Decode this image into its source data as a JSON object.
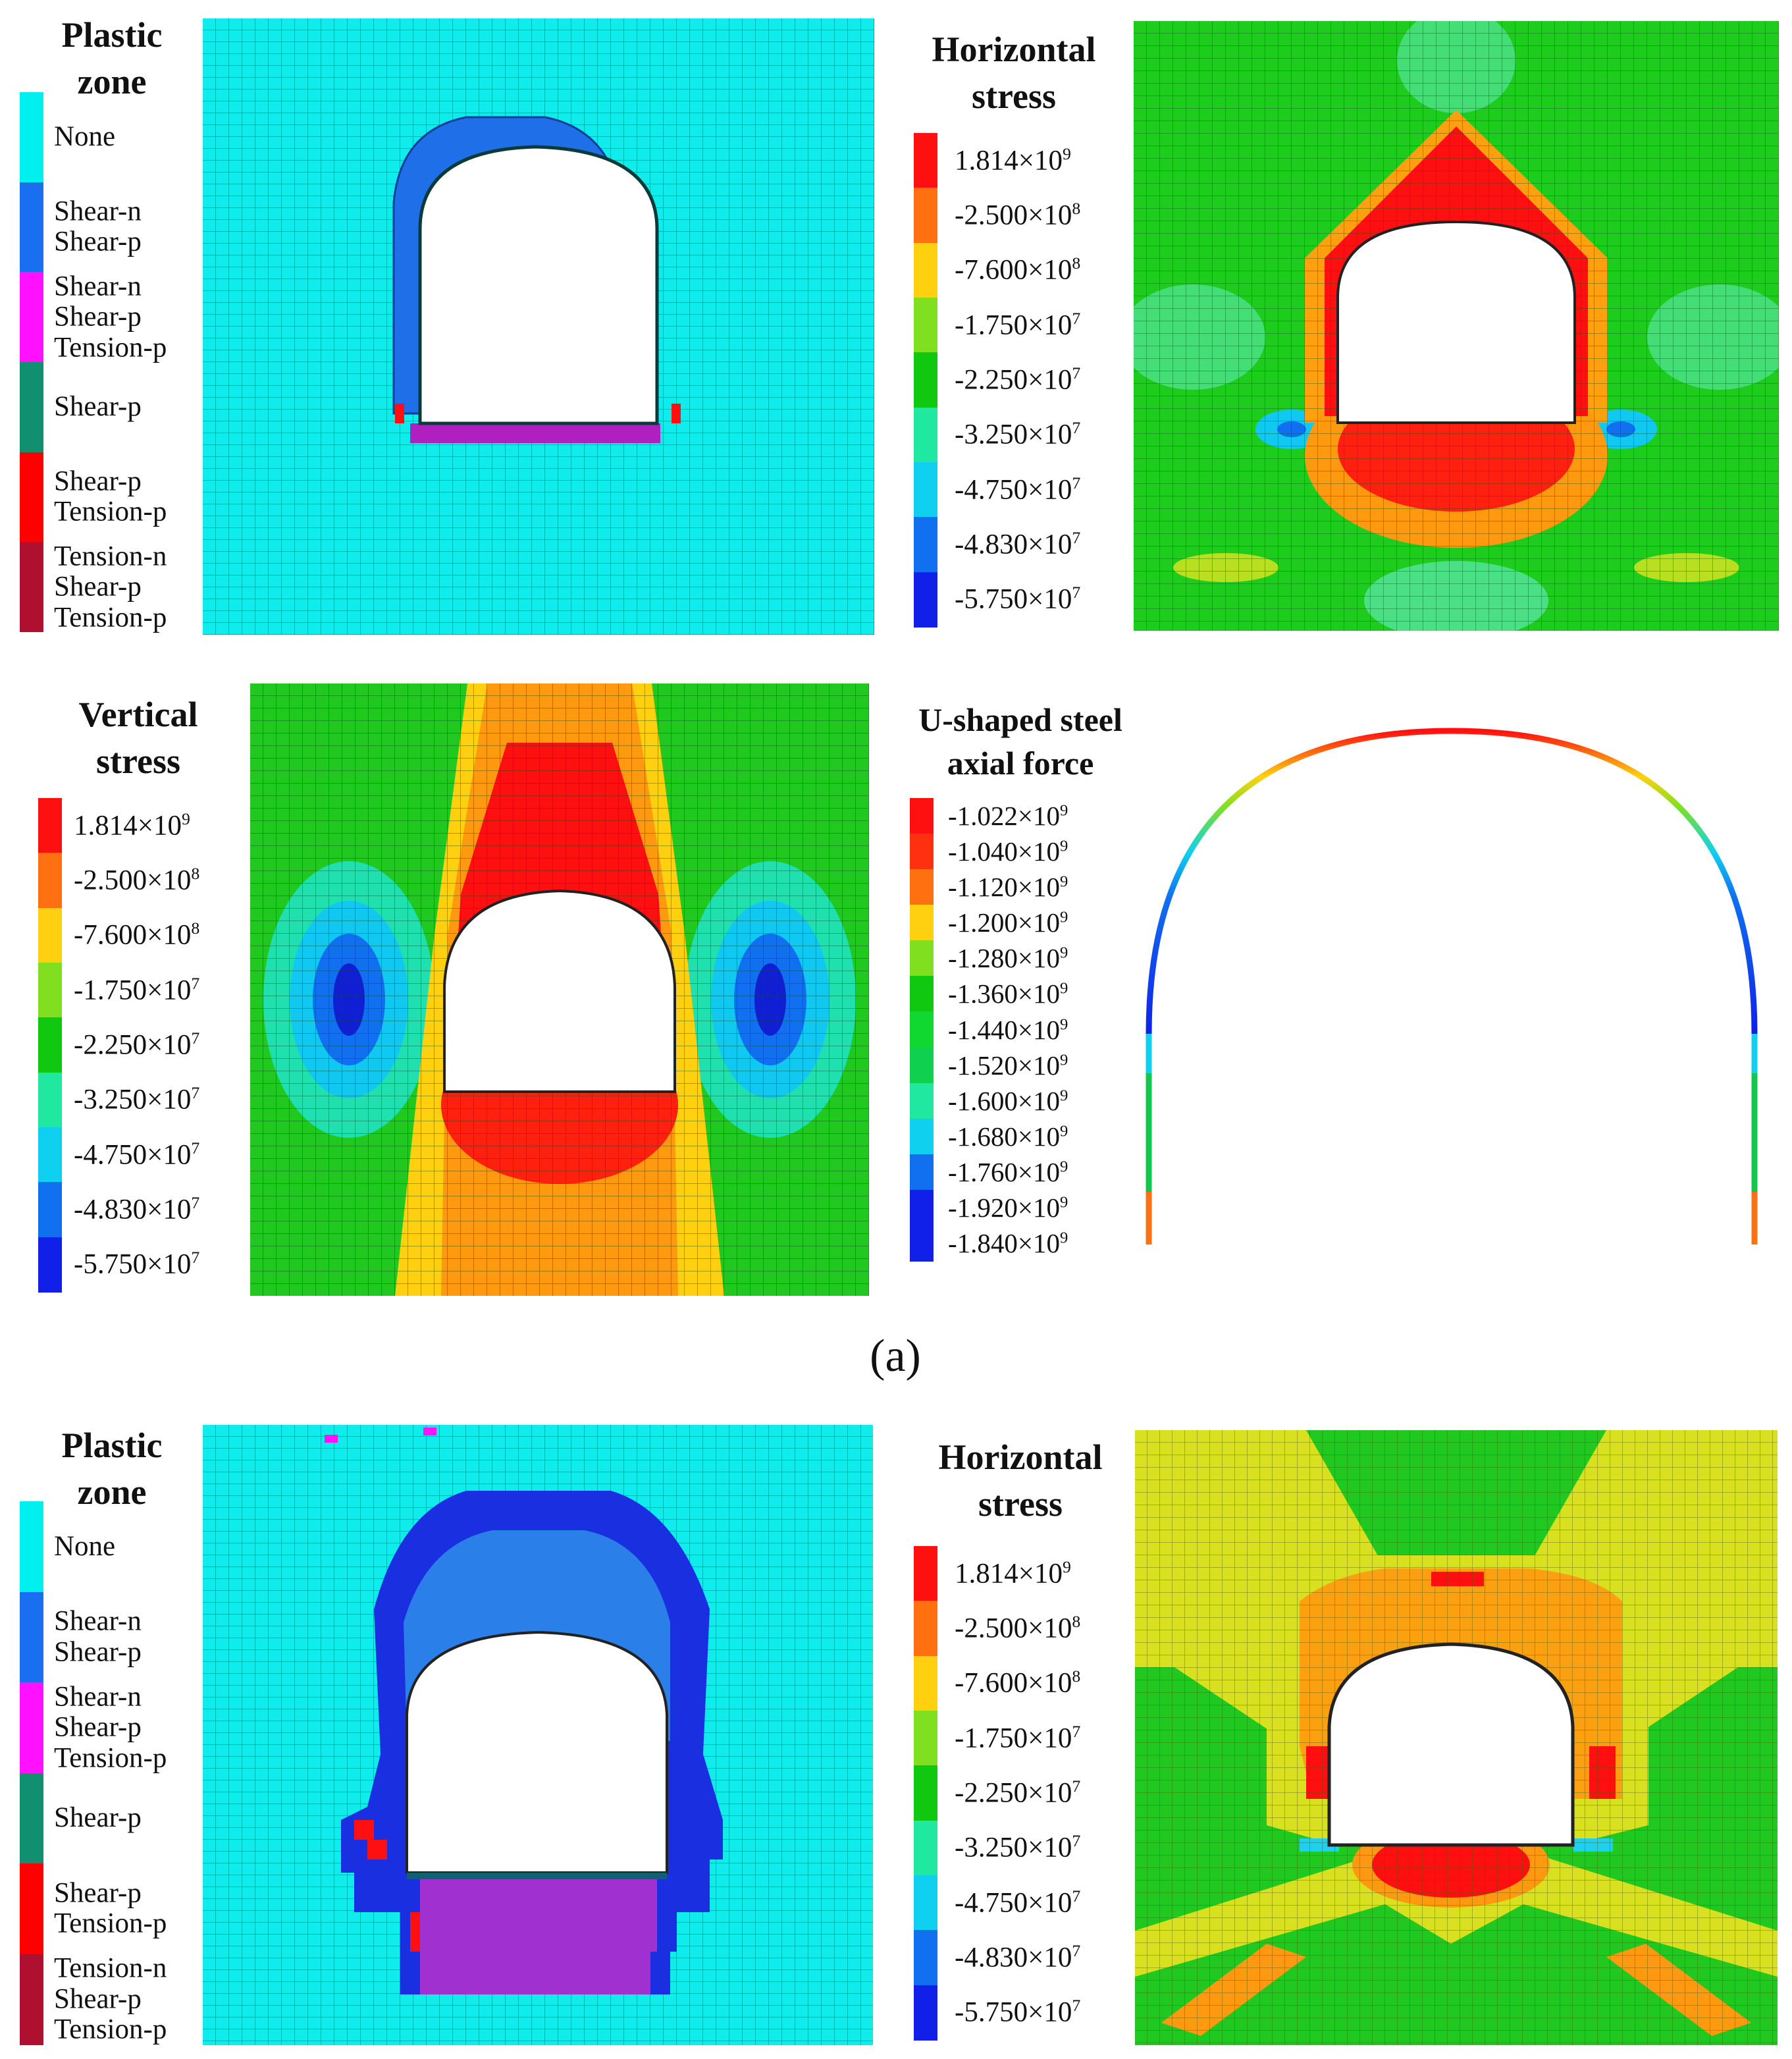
{
  "panels": {
    "a_plastic": {
      "title": [
        "Plastic",
        "zone"
      ],
      "legend": [
        {
          "color": "#00f0f0",
          "lines": [
            "None"
          ]
        },
        {
          "color": "#1a6ff0",
          "lines": [
            "Shear-n",
            "Shear-p"
          ]
        },
        {
          "color": "#ff10ff",
          "lines": [
            "Shear-n",
            "Shear-p",
            "Tension-p"
          ]
        },
        {
          "color": "#109070",
          "lines": [
            "Shear-p"
          ]
        },
        {
          "color": "#ff0000",
          "lines": [
            "Shear-p",
            "Tension-p"
          ]
        },
        {
          "color": "#b01030",
          "lines": [
            "Tension-n",
            "Shear-p",
            "Tension-p"
          ]
        }
      ]
    },
    "a_horizontal": {
      "title": [
        "Horizontal",
        "stress"
      ],
      "legend": [
        {
          "color": "#ff1010",
          "mant": "1.814",
          "exp": "9"
        },
        {
          "color": "#ff7010",
          "mant": "-2.500",
          "exp": "8"
        },
        {
          "color": "#ffd010",
          "mant": "-7.600",
          "exp": "8"
        },
        {
          "color": "#80e020",
          "mant": "-1.750",
          "exp": "7"
        },
        {
          "color": "#10c810",
          "mant": "-2.250",
          "exp": "7"
        },
        {
          "color": "#20e8a0",
          "mant": "-3.250",
          "exp": "7"
        },
        {
          "color": "#10d0f0",
          "mant": "-4.750",
          "exp": "7"
        },
        {
          "color": "#1070f0",
          "mant": "-4.830",
          "exp": "7"
        },
        {
          "color": "#1020e8",
          "mant": "-5.750",
          "exp": "7"
        }
      ]
    },
    "a_vertical": {
      "title": [
        "Vertical",
        "stress"
      ],
      "legend": [
        {
          "color": "#ff1010",
          "mant": "1.814",
          "exp": "9"
        },
        {
          "color": "#ff7010",
          "mant": "-2.500",
          "exp": "8"
        },
        {
          "color": "#ffd010",
          "mant": "-7.600",
          "exp": "8"
        },
        {
          "color": "#80e020",
          "mant": "-1.750",
          "exp": "7"
        },
        {
          "color": "#10c810",
          "mant": "-2.250",
          "exp": "7"
        },
        {
          "color": "#20e8a0",
          "mant": "-3.250",
          "exp": "7"
        },
        {
          "color": "#10d0f0",
          "mant": "-4.750",
          "exp": "7"
        },
        {
          "color": "#1070f0",
          "mant": "-4.830",
          "exp": "7"
        },
        {
          "color": "#1020e8",
          "mant": "-5.750",
          "exp": "7"
        }
      ]
    },
    "a_axial": {
      "title": [
        "U-shaped steel",
        "axial force"
      ],
      "legend": [
        {
          "color": "#ff1010",
          "mant": "-1.022",
          "exp": "9"
        },
        {
          "color": "#ff3010",
          "mant": "-1.040",
          "exp": "9"
        },
        {
          "color": "#ff7010",
          "mant": "-1.120",
          "exp": "9"
        },
        {
          "color": "#ffd010",
          "mant": "-1.200",
          "exp": "9"
        },
        {
          "color": "#80e020",
          "mant": "-1.280",
          "exp": "9"
        },
        {
          "color": "#10c810",
          "mant": "-1.360",
          "exp": "9"
        },
        {
          "color": "#10d830",
          "mant": "-1.440",
          "exp": "9"
        },
        {
          "color": "#10d050",
          "mant": "-1.520",
          "exp": "9"
        },
        {
          "color": "#20e8a0",
          "mant": "-1.600",
          "exp": "9"
        },
        {
          "color": "#10d0f0",
          "mant": "-1.680",
          "exp": "9"
        },
        {
          "color": "#1070f0",
          "mant": "-1.760",
          "exp": "9"
        },
        {
          "color": "#1020e8",
          "mant": "-1.920",
          "exp": "9"
        },
        {
          "color": "#1020e8",
          "mant": "-1.840",
          "exp": "9"
        }
      ]
    },
    "b_plastic": {
      "title": [
        "Plastic",
        "zone"
      ],
      "legend": [
        {
          "color": "#00f0f0",
          "lines": [
            "None"
          ]
        },
        {
          "color": "#1a6ff0",
          "lines": [
            "Shear-n",
            "Shear-p"
          ]
        },
        {
          "color": "#ff10ff",
          "lines": [
            "Shear-n",
            "Shear-p",
            "Tension-p"
          ]
        },
        {
          "color": "#109070",
          "lines": [
            "Shear-p"
          ]
        },
        {
          "color": "#ff0000",
          "lines": [
            "Shear-p",
            "Tension-p"
          ]
        },
        {
          "color": "#b01030",
          "lines": [
            "Tension-n",
            "Shear-p",
            "Tension-p"
          ]
        }
      ]
    },
    "b_horizontal": {
      "title": [
        "Horizontal",
        "stress"
      ],
      "legend": [
        {
          "color": "#ff1010",
          "mant": "1.814",
          "exp": "9"
        },
        {
          "color": "#ff7010",
          "mant": "-2.500",
          "exp": "8"
        },
        {
          "color": "#ffd010",
          "mant": "-7.600",
          "exp": "8"
        },
        {
          "color": "#80e020",
          "mant": "-1.750",
          "exp": "7"
        },
        {
          "color": "#10c810",
          "mant": "-2.250",
          "exp": "7"
        },
        {
          "color": "#20e8a0",
          "mant": "-3.250",
          "exp": "7"
        },
        {
          "color": "#10d0f0",
          "mant": "-4.750",
          "exp": "7"
        },
        {
          "color": "#1070f0",
          "mant": "-4.830",
          "exp": "7"
        },
        {
          "color": "#1020e8",
          "mant": "-5.750",
          "exp": "7"
        }
      ]
    }
  },
  "times_sign": "×10",
  "subfigure_label": "(a)"
}
